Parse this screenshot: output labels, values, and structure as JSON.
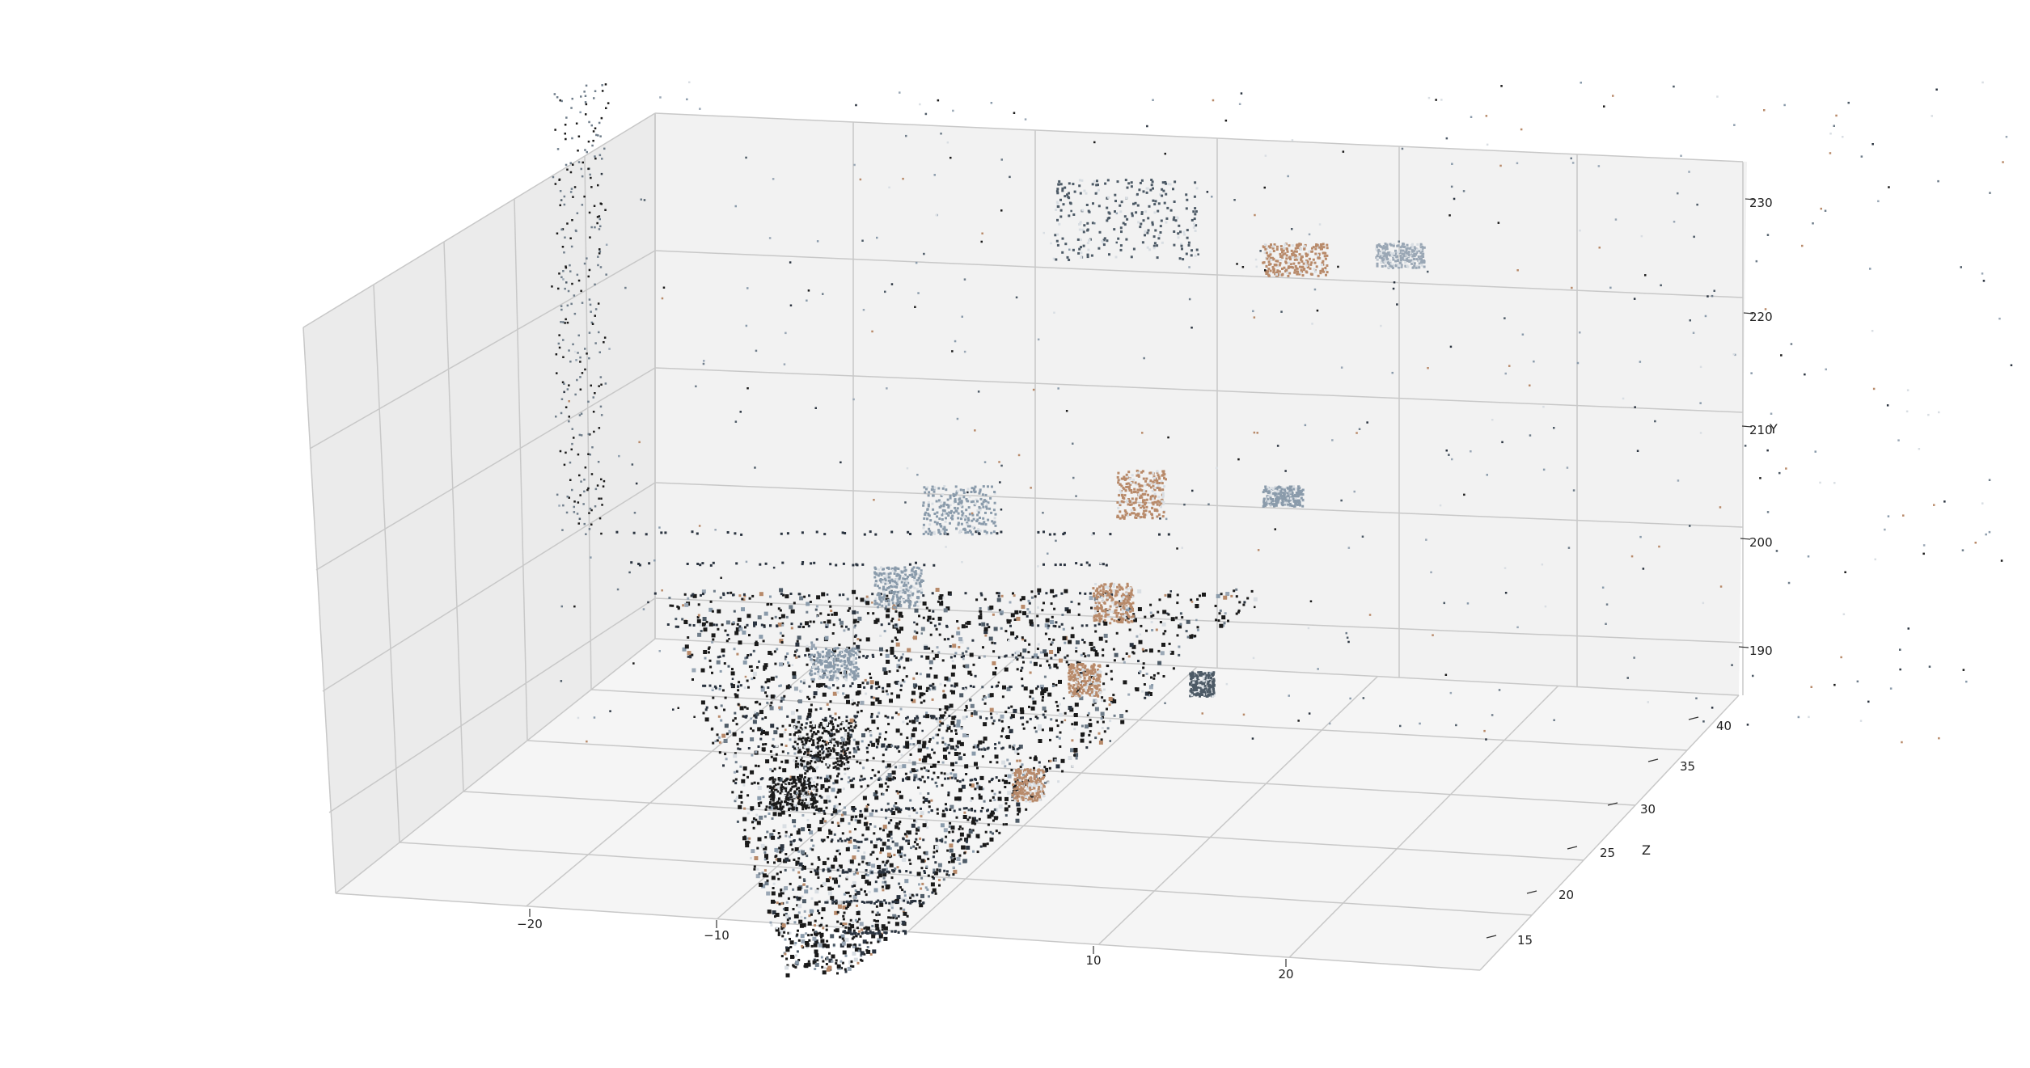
{
  "chart_data": {
    "type": "scatter",
    "subtype": "3d-point-cloud",
    "title": "",
    "grid": true,
    "pane_color": "#f2f2f2",
    "grid_color": "#c8c8c8",
    "axes": {
      "x": {
        "label": "",
        "ticks": [
          -20,
          -10,
          10,
          20
        ],
        "tick_labels": [
          "−20",
          "−10",
          "10",
          "20"
        ]
      },
      "y": {
        "label": "Y",
        "ticks": [
          190,
          200,
          210,
          220,
          230
        ],
        "tick_labels": [
          "190",
          "200",
          "210",
          "220",
          "230"
        ],
        "range": [
          185,
          233
        ]
      },
      "z": {
        "label": "Z",
        "ticks": [
          15,
          20,
          25,
          30,
          35,
          40
        ],
        "tick_labels": [
          "15",
          "20",
          "25",
          "30",
          "35",
          "40"
        ],
        "range": [
          12,
          40
        ]
      }
    },
    "point_colors": [
      "#1a1a1a",
      "#2b3440",
      "#4d5a66",
      "#8a9bab",
      "#b88a6a",
      "#9aa7b5",
      "#d9dee3",
      "#6f7d8a"
    ],
    "description_shown": "colored 3D point cloud of a street scene with building facades and trees"
  }
}
